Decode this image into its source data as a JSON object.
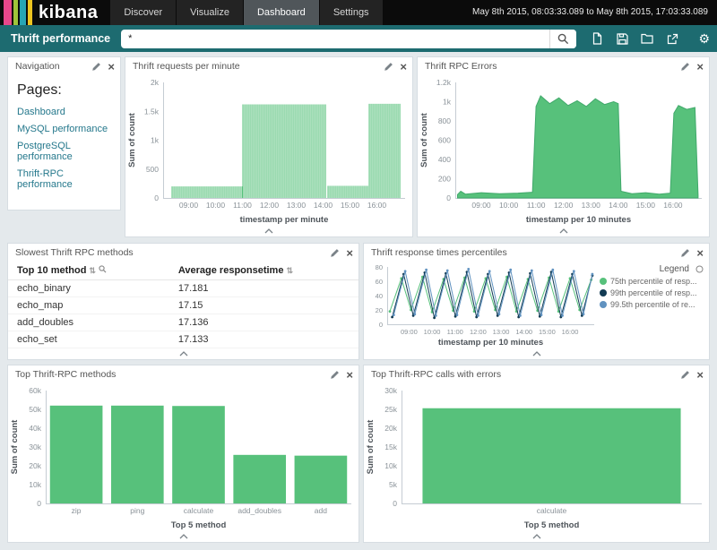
{
  "header": {
    "logo_text": "kibana",
    "logo_colors": [
      "#e8478b",
      "#a0c43a",
      "#27a5b4",
      "#edc420"
    ],
    "nav": [
      {
        "label": "Discover",
        "active": false
      },
      {
        "label": "Visualize",
        "active": false
      },
      {
        "label": "Dashboard",
        "active": true
      },
      {
        "label": "Settings",
        "active": false
      }
    ],
    "time_range": "May 8th 2015, 08:03:33.089 to May 8th 2015, 17:03:33.089"
  },
  "toolbar": {
    "accent": "#1d6b70",
    "dashboard_title": "Thrift performance",
    "query_value": "*",
    "action_icons": [
      "new-dashboard",
      "save-dashboard",
      "load-dashboard",
      "share-dashboard",
      "settings"
    ]
  },
  "icons": {
    "close": "×",
    "sort": "⇅",
    "settings": "⚙"
  },
  "panels": {
    "navigation": {
      "title": "Navigation",
      "heading": "Pages:",
      "links": [
        "Dashboard",
        "MySQL performance",
        "PostgreSQL performance",
        "Thrift-RPC performance"
      ]
    },
    "requests": {
      "title": "Thrift requests per minute"
    },
    "errors": {
      "title": "Thrift RPC Errors"
    },
    "slowest": {
      "title": "Slowest Thrift RPC methods",
      "columns": [
        "Top 10 method",
        "Average responsetime"
      ],
      "rows": [
        [
          "echo_binary",
          "17.181"
        ],
        [
          "echo_map",
          "17.15"
        ],
        [
          "add_doubles",
          "17.136"
        ],
        [
          "echo_set",
          "17.133"
        ]
      ]
    },
    "percentiles": {
      "title": "Thrift response times percentiles"
    },
    "top_methods": {
      "title": "Top Thrift-RPC methods"
    },
    "top_errors": {
      "title": "Top Thrift-RPC calls with errors"
    }
  },
  "chart_data": [
    {
      "id": "requests",
      "type": "bar",
      "x_mode": "time",
      "color": "#57c17b",
      "ylabel": "Sum of count",
      "xlabel": "timestamp per minute",
      "ylim": [
        0,
        2000
      ],
      "yticks": [
        [
          0,
          "0"
        ],
        [
          500,
          "500"
        ],
        [
          1000,
          "1k"
        ],
        [
          1500,
          "1.5k"
        ],
        [
          2000,
          "2k"
        ]
      ],
      "x_domain": [
        "08:03",
        "17:03"
      ],
      "xticks": [
        "09:00",
        "10:00",
        "11:00",
        "12:00",
        "13:00",
        "14:00",
        "15:00",
        "16:00"
      ],
      "bar_step_min": 4,
      "segments": [
        {
          "from": "08:22",
          "to": "10:58",
          "value": 200
        },
        {
          "from": "11:00",
          "to": "14:06",
          "value": 1620
        },
        {
          "from": "14:10",
          "to": "15:38",
          "value": 210
        },
        {
          "from": "15:42",
          "to": "16:52",
          "value": 1630
        }
      ]
    },
    {
      "id": "errors",
      "type": "area",
      "color": "#57c17b",
      "stroke": "#41a96b",
      "ylabel": "Sum of count",
      "xlabel": "timestamp per 10 minutes",
      "ylim": [
        0,
        1200
      ],
      "yticks": [
        [
          0,
          "0"
        ],
        [
          200,
          "200"
        ],
        [
          400,
          "400"
        ],
        [
          600,
          "600"
        ],
        [
          800,
          "800"
        ],
        [
          1000,
          "1k"
        ],
        [
          1200,
          "1.2k"
        ]
      ],
      "x_domain": [
        "08:03",
        "17:03"
      ],
      "xticks": [
        "09:00",
        "10:00",
        "11:00",
        "12:00",
        "13:00",
        "14:00",
        "15:00",
        "16:00"
      ],
      "points": [
        [
          "08:08",
          35
        ],
        [
          "08:15",
          70
        ],
        [
          "08:25",
          40
        ],
        [
          "09:00",
          55
        ],
        [
          "09:40",
          45
        ],
        [
          "10:20",
          50
        ],
        [
          "10:52",
          60
        ],
        [
          "11:00",
          950
        ],
        [
          "11:10",
          1060
        ],
        [
          "11:30",
          980
        ],
        [
          "11:50",
          1040
        ],
        [
          "12:10",
          960
        ],
        [
          "12:30",
          1010
        ],
        [
          "12:50",
          950
        ],
        [
          "13:10",
          1030
        ],
        [
          "13:30",
          970
        ],
        [
          "13:50",
          1000
        ],
        [
          "14:00",
          980
        ],
        [
          "14:06",
          70
        ],
        [
          "14:30",
          45
        ],
        [
          "15:00",
          55
        ],
        [
          "15:30",
          40
        ],
        [
          "15:54",
          50
        ],
        [
          "16:02",
          880
        ],
        [
          "16:12",
          960
        ],
        [
          "16:30",
          920
        ],
        [
          "16:48",
          940
        ],
        [
          "16:55",
          30
        ]
      ]
    },
    {
      "id": "percentiles",
      "type": "line",
      "legend_title": "Legend",
      "xlabel": "timestamp per 10 minutes",
      "ylim": [
        0,
        80
      ],
      "yticks": [
        [
          0,
          "0"
        ],
        [
          20,
          "20"
        ],
        [
          40,
          "40"
        ],
        [
          60,
          "60"
        ],
        [
          80,
          "80"
        ]
      ],
      "x_domain": [
        "08:03",
        "17:03"
      ],
      "xticks": [
        "09:00",
        "10:00",
        "11:00",
        "12:00",
        "13:00",
        "14:00",
        "15:00",
        "16:00"
      ],
      "series": [
        {
          "name": "75th percentile of resp...",
          "color": "#57c17b",
          "points": [
            [
              "08:10",
              18
            ],
            [
              "08:40",
              64
            ],
            [
              "09:05",
              20
            ],
            [
              "09:35",
              66
            ],
            [
              "10:00",
              17
            ],
            [
              "10:30",
              63
            ],
            [
              "10:55",
              19
            ],
            [
              "11:25",
              65
            ],
            [
              "11:50",
              18
            ],
            [
              "12:20",
              64
            ],
            [
              "12:45",
              20
            ],
            [
              "13:15",
              66
            ],
            [
              "13:40",
              18
            ],
            [
              "14:10",
              63
            ],
            [
              "14:35",
              19
            ],
            [
              "15:05",
              65
            ],
            [
              "15:30",
              18
            ],
            [
              "16:00",
              64
            ],
            [
              "16:25",
              20
            ],
            [
              "16:55",
              62
            ]
          ]
        },
        {
          "name": "99th percentile of resp...",
          "color": "#123b53",
          "points": [
            [
              "08:16",
              10
            ],
            [
              "08:46",
              70
            ],
            [
              "09:11",
              12
            ],
            [
              "09:41",
              72
            ],
            [
              "10:06",
              9
            ],
            [
              "10:36",
              71
            ],
            [
              "11:01",
              11
            ],
            [
              "11:31",
              73
            ],
            [
              "11:56",
              10
            ],
            [
              "12:26",
              70
            ],
            [
              "12:51",
              12
            ],
            [
              "13:21",
              72
            ],
            [
              "13:46",
              10
            ],
            [
              "14:16",
              71
            ],
            [
              "14:41",
              11
            ],
            [
              "15:11",
              73
            ],
            [
              "15:36",
              10
            ],
            [
              "16:06",
              70
            ],
            [
              "16:31",
              12
            ],
            [
              "16:58",
              68
            ]
          ]
        },
        {
          "name": "99.5th percentile of re...",
          "color": "#6092c0",
          "points": [
            [
              "08:20",
              13
            ],
            [
              "08:50",
              74
            ],
            [
              "09:15",
              14
            ],
            [
              "09:45",
              76
            ],
            [
              "10:10",
              12
            ],
            [
              "10:40",
              75
            ],
            [
              "11:05",
              13
            ],
            [
              "11:35",
              77
            ],
            [
              "12:00",
              12
            ],
            [
              "12:30",
              74
            ],
            [
              "12:55",
              14
            ],
            [
              "13:25",
              76
            ],
            [
              "13:50",
              12
            ],
            [
              "14:20",
              75
            ],
            [
              "14:45",
              13
            ],
            [
              "15:15",
              76
            ],
            [
              "15:40",
              12
            ],
            [
              "16:10",
              74
            ],
            [
              "16:35",
              14
            ],
            [
              "16:58",
              70
            ]
          ]
        }
      ]
    },
    {
      "id": "top_methods",
      "type": "bar",
      "x_mode": "category",
      "color": "#57c17b",
      "ylabel": "Sum of count",
      "xlabel": "Top 5 method",
      "ylim": [
        0,
        60000
      ],
      "yticks": [
        [
          0,
          "0"
        ],
        [
          10000,
          "10k"
        ],
        [
          20000,
          "20k"
        ],
        [
          30000,
          "30k"
        ],
        [
          40000,
          "40k"
        ],
        [
          50000,
          "50k"
        ],
        [
          60000,
          "60k"
        ]
      ],
      "categories": [
        "zip",
        "ping",
        "calculate",
        "add_doubles",
        "add"
      ],
      "values": [
        52000,
        52000,
        51800,
        25800,
        25400
      ]
    },
    {
      "id": "top_errors",
      "type": "bar",
      "x_mode": "category",
      "color": "#57c17b",
      "ylabel": "Sum of count",
      "xlabel": "Top 5 method",
      "ylim": [
        0,
        30000
      ],
      "yticks": [
        [
          0,
          "0"
        ],
        [
          5000,
          "5k"
        ],
        [
          10000,
          "10k"
        ],
        [
          15000,
          "15k"
        ],
        [
          20000,
          "20k"
        ],
        [
          25000,
          "25k"
        ],
        [
          30000,
          "30k"
        ]
      ],
      "categories": [
        "calculate"
      ],
      "values": [
        25300
      ]
    }
  ]
}
